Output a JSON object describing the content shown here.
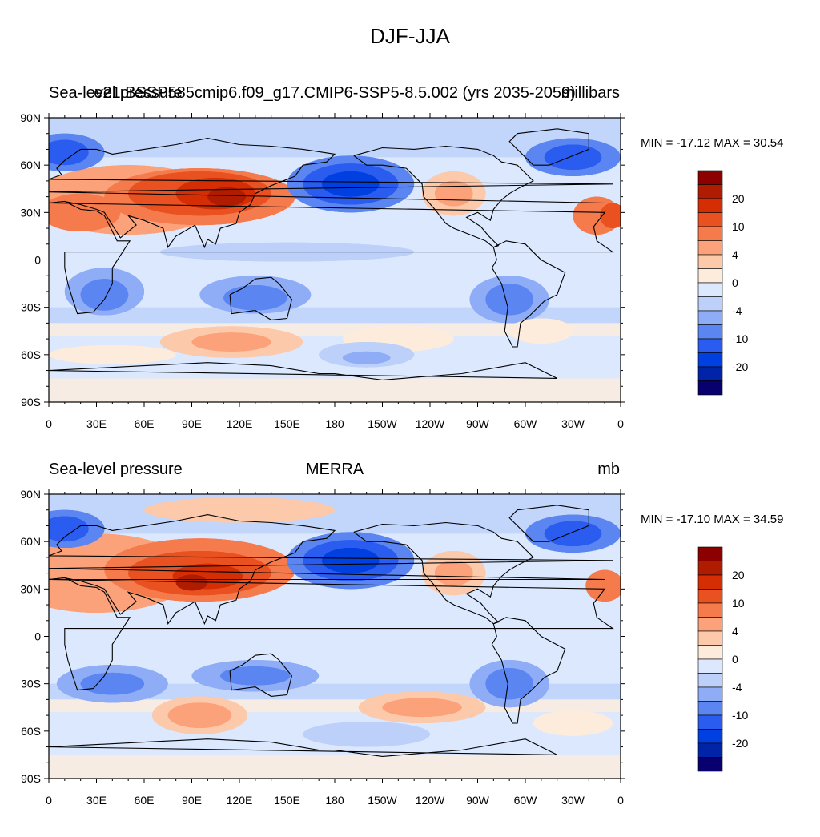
{
  "figure_title": "DJF-JJA",
  "colors": {
    "-25": "#08006e",
    "-20": "#0024a8",
    "-15": "#0040e0",
    "-10": "#2a5cf0",
    "-7": "#5b86f2",
    "-4": "#8fadf6",
    "-2": "#bcd0fa",
    "0": "#dbe8fd",
    "2": "#fdecdc",
    "4": "#fcc9aa",
    "7": "#fba27a",
    "10": "#f57a4c",
    "15": "#ea5120",
    "20": "#d52e05",
    "25": "#b01c02",
    "30": "#8c0000",
    "land_outline": "#000000"
  },
  "colorbar": {
    "levels": [
      "30",
      "25",
      "20",
      "15",
      "10",
      "7",
      "4",
      "2",
      "0",
      "-2",
      "-4",
      "-7",
      "-10",
      "-15",
      "-20",
      "-25"
    ],
    "tick_labels": [
      "20",
      "10",
      "4",
      "0",
      "-4",
      "-10",
      "-20"
    ]
  },
  "axes": {
    "x_ticks": [
      "0",
      "30E",
      "60E",
      "90E",
      "120E",
      "150E",
      "180",
      "150W",
      "120W",
      "90W",
      "60W",
      "30W",
      "0"
    ],
    "y_ticks": [
      "90N",
      "60N",
      "30N",
      "0",
      "30S",
      "60S",
      "90S"
    ]
  },
  "panels": [
    {
      "left_title": "Sea-level pressure",
      "center_title": "e21.BSSP585cmip6.f09_g17.CMIP6-SSP5-8.5.002 (yrs 2035-2059)",
      "units": "millibars",
      "min_max": "MIN = -17.12 MAX =  30.54",
      "min": -17.12,
      "max": 30.54
    },
    {
      "left_title": "Sea-level pressure",
      "center_title": "MERRA",
      "units": "mb",
      "min_max": "MIN = -17.10 MAX =  34.59",
      "min": -17.1,
      "max": 34.59
    }
  ]
}
